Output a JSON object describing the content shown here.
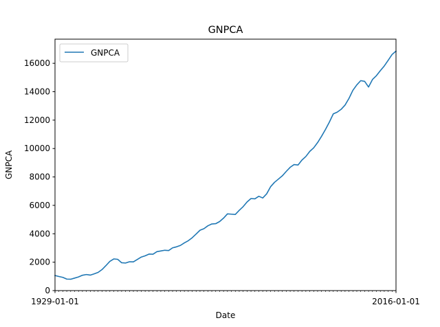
{
  "chart_data": {
    "type": "line",
    "title": "GNPCA",
    "xlabel": "Date",
    "ylabel": "GNPCA",
    "x_tick_labels": [
      "1929-01-01",
      "2016-01-01"
    ],
    "xlim": [
      1929,
      2016
    ],
    "ylim": [
      0,
      17700
    ],
    "y_ticks": [
      0,
      2000,
      4000,
      6000,
      8000,
      10000,
      12000,
      14000,
      16000
    ],
    "grid": false,
    "legend_position": "upper-left",
    "series": [
      {
        "name": "GNPCA",
        "color": "#1f77b4",
        "x": [
          1929,
          1930,
          1931,
          1932,
          1933,
          1934,
          1935,
          1936,
          1937,
          1938,
          1939,
          1940,
          1941,
          1942,
          1943,
          1944,
          1945,
          1946,
          1947,
          1948,
          1949,
          1950,
          1951,
          1952,
          1953,
          1954,
          1955,
          1956,
          1957,
          1958,
          1959,
          1960,
          1961,
          1962,
          1963,
          1964,
          1965,
          1966,
          1967,
          1968,
          1969,
          1970,
          1971,
          1972,
          1973,
          1974,
          1975,
          1976,
          1977,
          1978,
          1979,
          1980,
          1981,
          1982,
          1983,
          1984,
          1985,
          1986,
          1987,
          1988,
          1989,
          1990,
          1991,
          1992,
          1993,
          1994,
          1995,
          1996,
          1997,
          1998,
          1999,
          2000,
          2001,
          2002,
          2003,
          2004,
          2005,
          2006,
          2007,
          2008,
          2009,
          2010,
          2011,
          2012,
          2013,
          2014,
          2015,
          2016
        ],
        "values": [
          1060,
          990,
          930,
          810,
          800,
          880,
          960,
          1080,
          1130,
          1090,
          1180,
          1280,
          1480,
          1760,
          2060,
          2230,
          2200,
          1960,
          1940,
          2030,
          2020,
          2190,
          2360,
          2450,
          2570,
          2560,
          2740,
          2790,
          2840,
          2820,
          3010,
          3080,
          3180,
          3360,
          3510,
          3720,
          3980,
          4250,
          4360,
          4560,
          4690,
          4710,
          4860,
          5100,
          5400,
          5380,
          5360,
          5650,
          5910,
          6240,
          6480,
          6460,
          6640,
          6520,
          6810,
          7310,
          7620,
          7850,
          8080,
          8390,
          8680,
          8870,
          8840,
          9190,
          9440,
          9800,
          10050,
          10420,
          10860,
          11340,
          11860,
          12440,
          12560,
          12760,
          13060,
          13530,
          14100,
          14480,
          14780,
          14730,
          14330,
          14860,
          15130,
          15480,
          15810,
          16210,
          16620,
          16860
        ]
      }
    ]
  }
}
